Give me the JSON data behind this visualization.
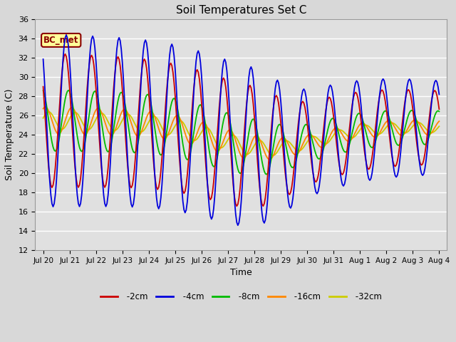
{
  "title": "Soil Temperatures Set C",
  "xlabel": "Time",
  "ylabel": "Soil Temperature (C)",
  "ylim": [
    12,
    36
  ],
  "yticks": [
    12,
    14,
    16,
    18,
    20,
    22,
    24,
    26,
    28,
    30,
    32,
    34,
    36
  ],
  "bg_color": "#d8d8d8",
  "plot_bg_color": "#e0e0e0",
  "grid_color": "#ffffff",
  "annotation_text": "BC_met",
  "annotation_color": "#8b0000",
  "annotation_bg": "#ffff99",
  "lines": {
    "-2cm": {
      "color": "#cc0000",
      "lw": 1.3
    },
    "-4cm": {
      "color": "#0000dd",
      "lw": 1.3
    },
    "-8cm": {
      "color": "#00bb00",
      "lw": 1.3
    },
    "-16cm": {
      "color": "#ff8800",
      "lw": 1.3
    },
    "-32cm": {
      "color": "#cccc00",
      "lw": 1.3
    }
  },
  "xtick_labels": [
    "Jul 20",
    "Jul 21",
    "Jul 22",
    "Jul 23",
    "Jul 24",
    "Jul 25",
    "Jul 26",
    "Jul 27",
    "Jul 28",
    "Jul 29",
    "Jul 30",
    "Jul 31",
    "Aug 1",
    "Aug 2",
    "Aug 3",
    "Aug 4"
  ],
  "figsize": [
    6.4,
    4.8
  ],
  "dpi": 100
}
